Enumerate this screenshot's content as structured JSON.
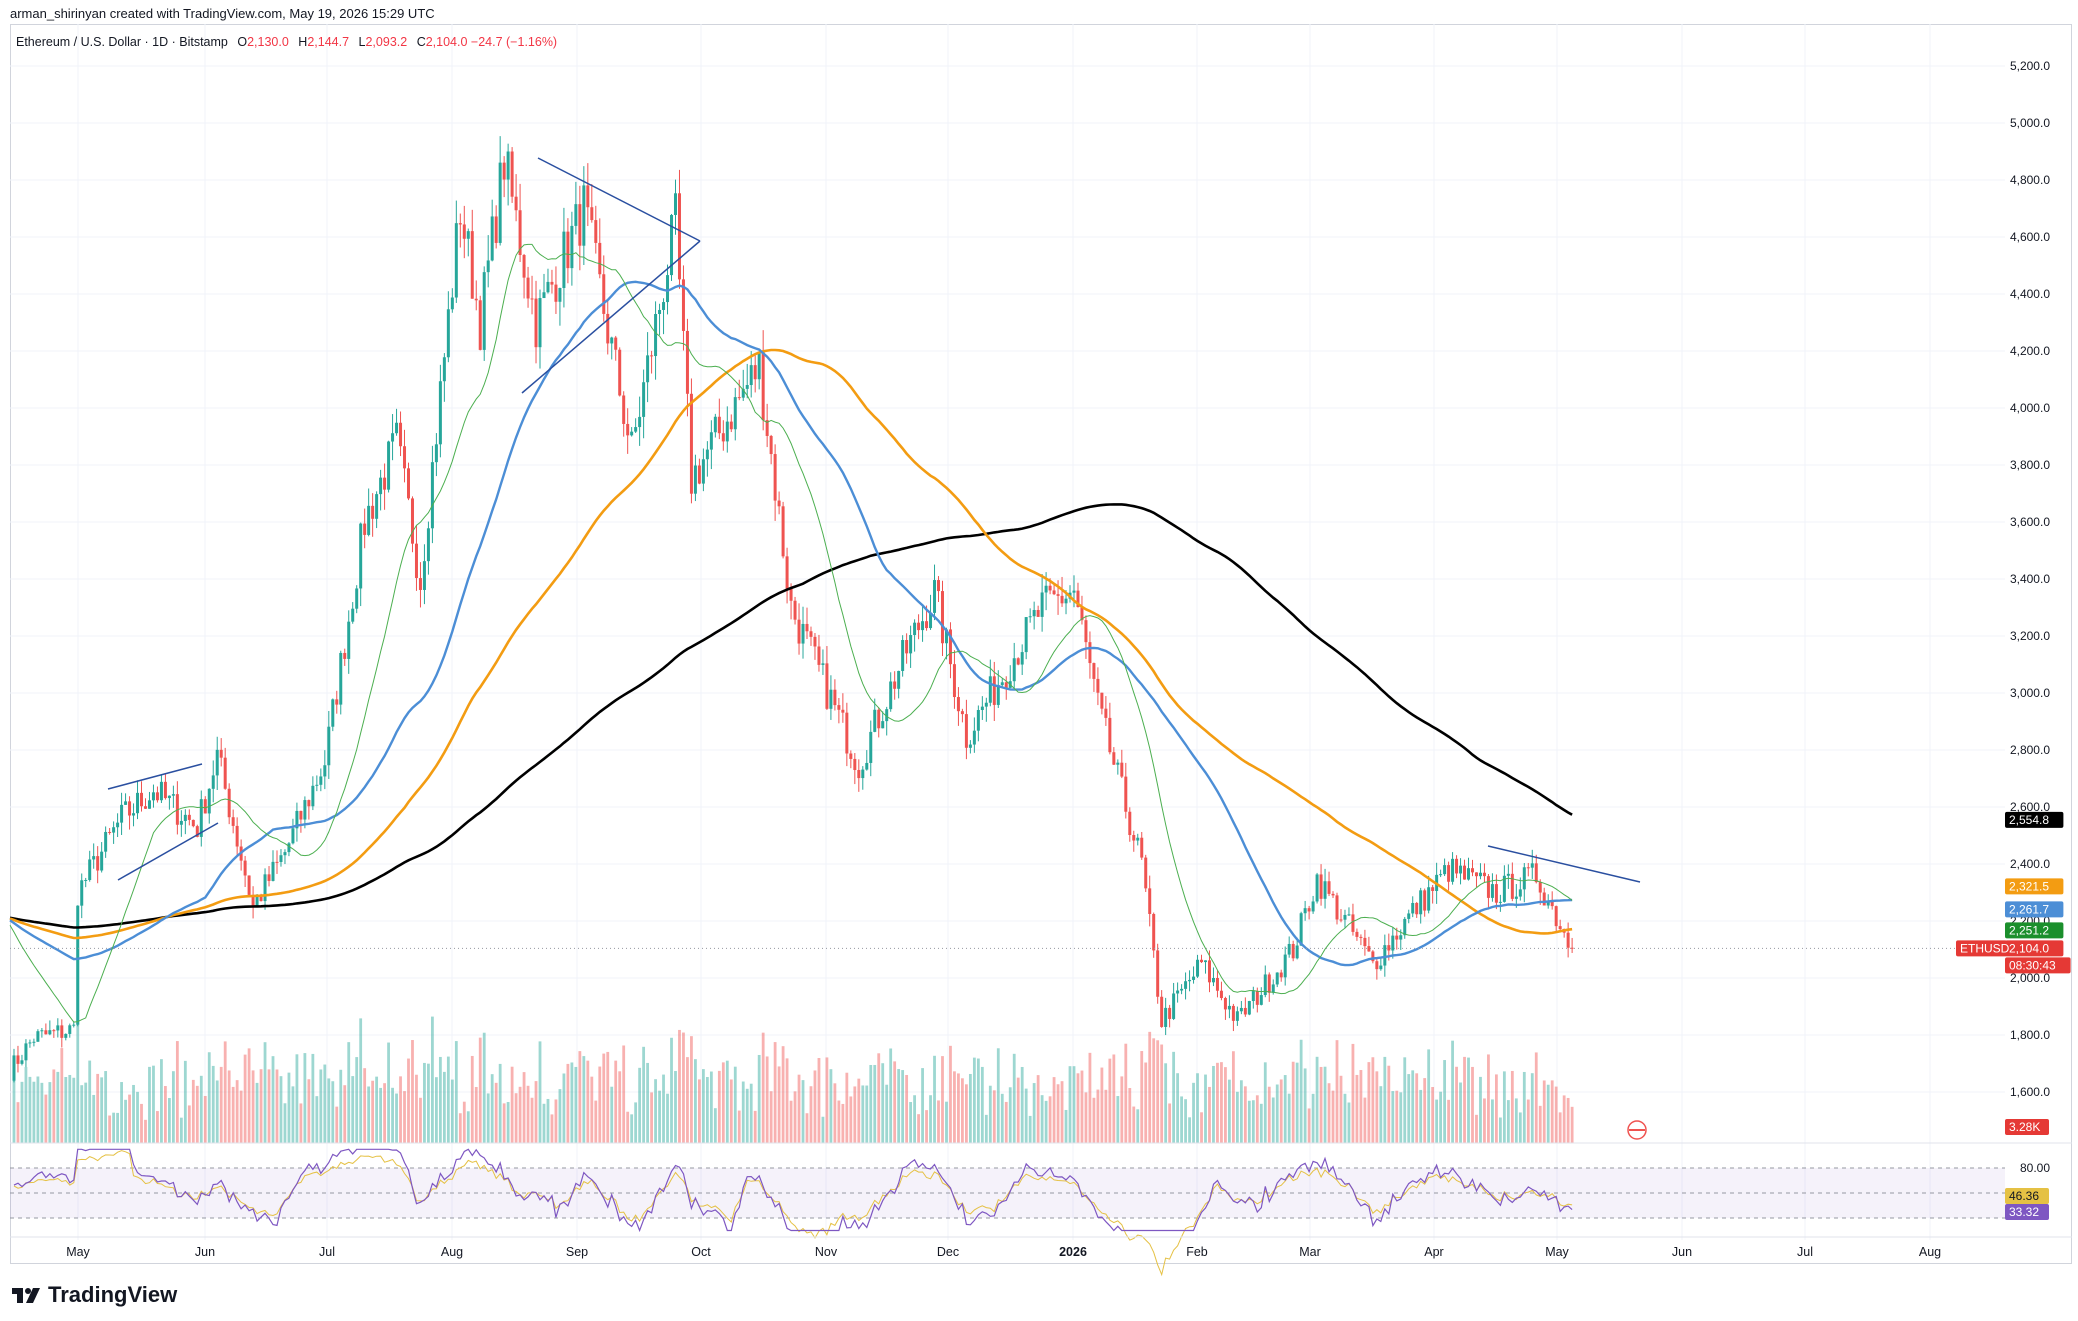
{
  "byline": "arman_shirinyan created with TradingView.com, May 19, 2026 15:29 UTC",
  "legend": {
    "symbol": "Ethereum / U.S. Dollar · 1D · Bitstamp",
    "o_key": "O",
    "o": "2,130.0",
    "h_key": "H",
    "h": "2,144.7",
    "l_key": "L",
    "l": "2,093.2",
    "c_key": "C",
    "c": "2,104.0",
    "change": "−24.7 (−1.16%)"
  },
  "footer_brand": "TradingView",
  "colors": {
    "up": "#26a69a",
    "down": "#ef5350",
    "ma200": "#000000",
    "ma100": "#f39c12",
    "ma50": "#4c8ed6",
    "ma20": "#4caf50",
    "rsi": "#7e57c2",
    "rsi_ma": "#e5c144",
    "triangle": "#2a4fa0",
    "price_badge": "#e53935"
  },
  "price_labels": {
    "ma200": "2,554.8",
    "ma100": "2,321.5",
    "ma50": "2,261.7",
    "ma20": "2,251.2",
    "last": "2,104.0",
    "countdown": "08:30:43",
    "ticker": "ETHUSD",
    "volume": "3.28K",
    "rsi": "46.36",
    "rsi_ma": "33.32"
  },
  "chart_data": {
    "type": "candlestick",
    "title": "Ethereum / U.S. Dollar · 1D · Bitstamp",
    "yaxis_ticks": [
      "5,200.0",
      "5,000.0",
      "4,800.0",
      "4,600.0",
      "4,400.0",
      "4,200.0",
      "4,000.0",
      "3,800.0",
      "3,600.0",
      "3,400.0",
      "3,200.0",
      "3,000.0",
      "2,800.0",
      "2,600.0",
      "2,400.0",
      "2,200.0",
      "2,000.0",
      "1,800.0",
      "1,600.0"
    ],
    "ylim": [
      1500,
      5300
    ],
    "xaxis_ticks": [
      "May",
      "Jun",
      "Jul",
      "Aug",
      "Sep",
      "Oct",
      "Nov",
      "Dec",
      "2026",
      "Feb",
      "Mar",
      "Apr",
      "May",
      "Jun",
      "Jul",
      "Aug"
    ],
    "price_path": [
      [
        "2025-04-20",
        1640
      ],
      [
        "2025-04-28",
        1790
      ],
      [
        "2025-05-08",
        1820
      ],
      [
        "2025-05-09",
        2300
      ],
      [
        "2025-05-20",
        2560
      ],
      [
        "2025-05-28",
        2660
      ],
      [
        "2025-06-08",
        2530
      ],
      [
        "2025-06-13",
        2780
      ],
      [
        "2025-06-22",
        2250
      ],
      [
        "2025-06-30",
        2440
      ],
      [
        "2025-07-10",
        2760
      ],
      [
        "2025-07-20",
        3600
      ],
      [
        "2025-07-28",
        3880
      ],
      [
        "2025-08-03",
        3400
      ],
      [
        "2025-08-13",
        4700
      ],
      [
        "2025-08-18",
        4300
      ],
      [
        "2025-08-24",
        4870
      ],
      [
        "2025-09-01",
        4300
      ],
      [
        "2025-09-13",
        4700
      ],
      [
        "2025-09-25",
        3850
      ],
      [
        "2025-10-06",
        4650
      ],
      [
        "2025-10-10",
        3750
      ],
      [
        "2025-10-27",
        4150
      ],
      [
        "2025-11-04",
        3300
      ],
      [
        "2025-11-21",
        2750
      ],
      [
        "2025-12-03",
        3150
      ],
      [
        "2025-12-10",
        3350
      ],
      [
        "2025-12-18",
        2850
      ],
      [
        "2026-01-06",
        3300
      ],
      [
        "2026-01-14",
        3360
      ],
      [
        "2026-01-20",
        2950
      ],
      [
        "2026-01-31",
        2400
      ],
      [
        "2026-02-05",
        1850
      ],
      [
        "2026-02-15",
        2050
      ],
      [
        "2026-02-24",
        1850
      ],
      [
        "2026-03-10",
        2100
      ],
      [
        "2026-03-16",
        2350
      ],
      [
        "2026-03-30",
        2050
      ],
      [
        "2026-04-10",
        2250
      ],
      [
        "2026-04-18",
        2380
      ],
      [
        "2026-04-30",
        2300
      ],
      [
        "2026-05-10",
        2360
      ],
      [
        "2026-05-19",
        2104
      ]
    ],
    "moving_averages": [
      {
        "name": "MA 200",
        "last": 2554.8
      },
      {
        "name": "MA 100",
        "last": 2321.5
      },
      {
        "name": "MA 50",
        "last": 2261.7
      },
      {
        "name": "MA 20",
        "last": 2251.2
      }
    ],
    "volume_last": "3.28K",
    "rsi": {
      "ticks": [
        "80.00"
      ],
      "value": 46.36,
      "ma": 33.32,
      "levels": [
        70,
        50,
        30
      ]
    },
    "grid": true,
    "legend_position": "top-left"
  }
}
